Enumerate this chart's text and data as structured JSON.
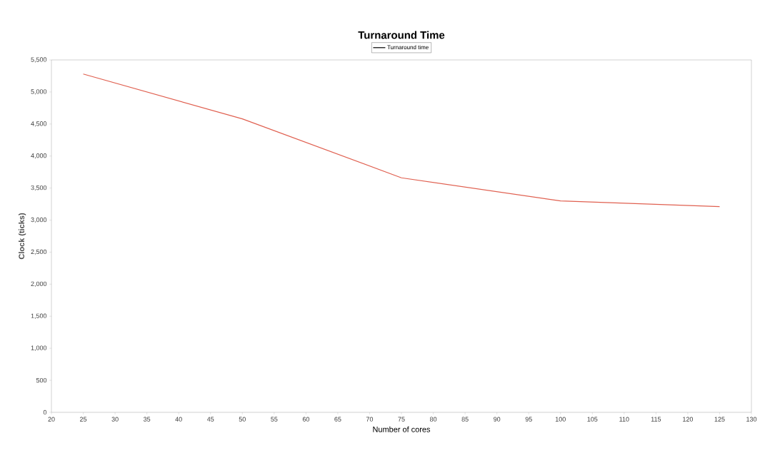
{
  "chart_data": {
    "type": "line",
    "title": "Turnaround Time",
    "xlabel": "Number of cores",
    "ylabel": "Clock (ticks)",
    "x": [
      25,
      50,
      75,
      100,
      125
    ],
    "series": [
      {
        "name": "Turnaround time",
        "color": "#e06050",
        "values": [
          5280,
          4580,
          3660,
          3300,
          3210
        ]
      }
    ],
    "xlim": [
      20,
      130
    ],
    "xticks": [
      20,
      25,
      30,
      35,
      40,
      45,
      50,
      55,
      60,
      65,
      70,
      75,
      80,
      85,
      90,
      95,
      100,
      105,
      110,
      115,
      120,
      125,
      130
    ],
    "ylim": [
      0,
      5500
    ],
    "yticks": [
      0,
      500,
      {
        "value": 1000,
        "label": "1,000"
      },
      {
        "value": 1500,
        "label": "1,500"
      },
      {
        "value": 2000,
        "label": "2,000"
      },
      {
        "value": 2500,
        "label": "2,500"
      },
      {
        "value": 3000,
        "label": "3,000"
      },
      {
        "value": 3500,
        "label": "3,500"
      },
      {
        "value": 4000,
        "label": "4,000"
      },
      {
        "value": 4500,
        "label": "4,500"
      },
      {
        "value": 5000,
        "label": "5,000"
      },
      {
        "value": 5500,
        "label": "5,500"
      }
    ],
    "legend": "top",
    "grid": false,
    "marker": "none",
    "line_style": "solid"
  }
}
